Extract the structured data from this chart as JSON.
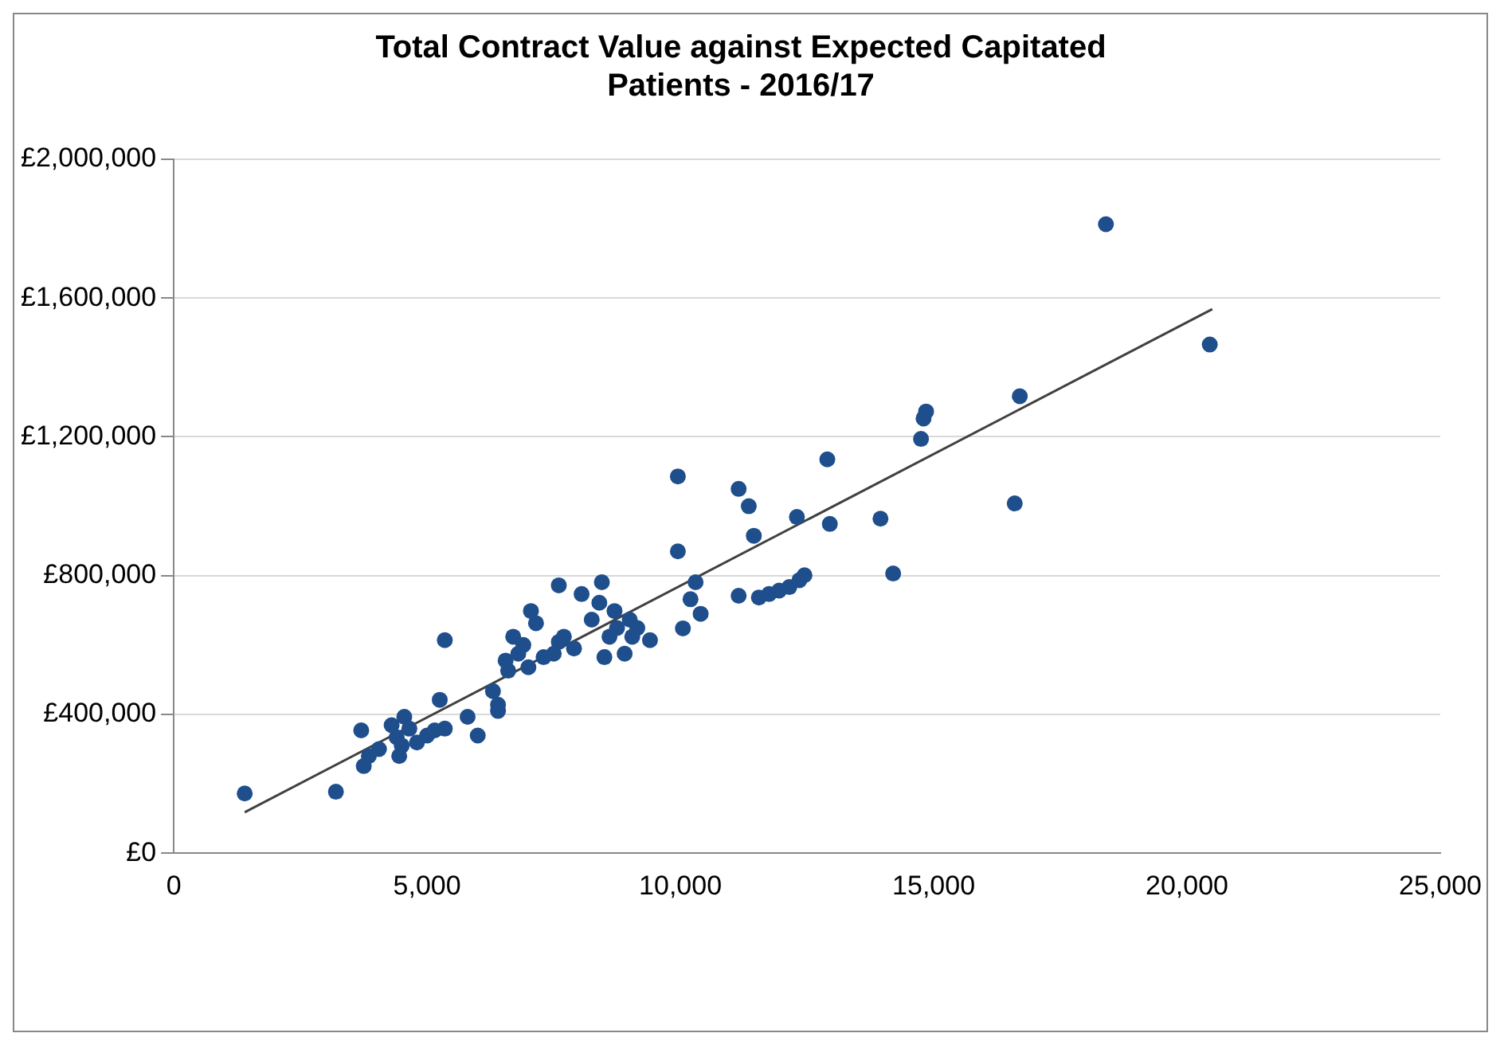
{
  "chart_data": {
    "type": "scatter",
    "title": "Total Contract Value against Expected Capitated Patients - 2016/17",
    "xlim": [
      0,
      25000
    ],
    "xticks": [
      {
        "value": 0,
        "label": "0"
      },
      {
        "value": 5000,
        "label": "5,000"
      },
      {
        "value": 10000,
        "label": "10,000"
      },
      {
        "value": 15000,
        "label": "15,000"
      },
      {
        "value": 20000,
        "label": "20,000"
      },
      {
        "value": 25000,
        "label": "25,000"
      }
    ],
    "ylim": [
      0,
      2000000
    ],
    "yticks": [
      {
        "value": 0,
        "label": "£0"
      },
      {
        "value": 400000,
        "label": "£400,000"
      },
      {
        "value": 800000,
        "label": "£800,000"
      },
      {
        "value": 1200000,
        "label": "£1,200,000"
      },
      {
        "value": 1600000,
        "label": "£1,600,000"
      },
      {
        "value": 2000000,
        "label": "£2,000,000"
      }
    ],
    "grid": "y",
    "legend": false,
    "series": [
      {
        "marker": "circle",
        "color": "#1f4e8c",
        "x": [
          1400,
          3200,
          3700,
          3750,
          3850,
          4050,
          4300,
          4400,
          4450,
          4550,
          4500,
          4650,
          4800,
          5000,
          5150,
          5250,
          5350,
          5350,
          5800,
          6000,
          6300,
          6400,
          6400,
          6550,
          6600,
          6700,
          6800,
          6900,
          7000,
          7050,
          7150,
          7300,
          7500,
          7600,
          7600,
          7700,
          7900,
          8050,
          8250,
          8400,
          8450,
          8500,
          8600,
          8700,
          8750,
          8900,
          9000,
          9050,
          9150,
          9400,
          9950,
          9950,
          10050,
          10200,
          10300,
          10400,
          11150,
          11150,
          11350,
          11450,
          11550,
          11750,
          11950,
          12150,
          12300,
          12350,
          12450,
          12900,
          12950,
          13950,
          14200,
          14750,
          14800,
          14850,
          16600,
          16700,
          18400,
          20450
        ],
        "values": [
          172000,
          177000,
          354000,
          251000,
          280000,
          300000,
          369000,
          334000,
          280000,
          393000,
          310000,
          359000,
          319000,
          339000,
          354000,
          442000,
          359000,
          614000,
          393000,
          339000,
          467000,
          428000,
          410000,
          555000,
          526000,
          624000,
          575000,
          600000,
          536000,
          698000,
          663000,
          565000,
          575000,
          772000,
          609000,
          624000,
          590000,
          747000,
          673000,
          722000,
          781000,
          565000,
          624000,
          698000,
          649000,
          575000,
          673000,
          624000,
          649000,
          614000,
          1086000,
          870000,
          648000,
          732000,
          781000,
          690000,
          1050000,
          742000,
          1000000,
          915000,
          737000,
          747000,
          757000,
          767000,
          969000,
          787000,
          801000,
          1135000,
          949000,
          964000,
          806000,
          1194000,
          1253000,
          1273000,
          1008000,
          1317000,
          1813000,
          1466000
        ]
      },
      {
        "type": "line",
        "color": "#404040",
        "x": [
          1400,
          20500
        ],
        "values": [
          118000,
          1568000
        ]
      }
    ]
  }
}
